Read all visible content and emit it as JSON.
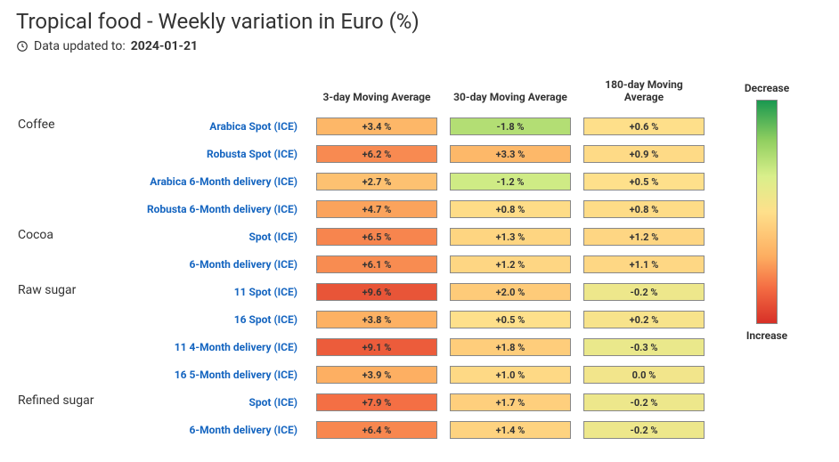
{
  "header": {
    "title": "Tropical food - Weekly variation in Euro (%)",
    "updated_prefix": "Data updated to:",
    "updated_date": "2024-01-21"
  },
  "columns": [
    "3-day Moving Average",
    "30-day Moving Average",
    "180-day Moving Average"
  ],
  "legend": {
    "top": "Decrease",
    "bottom": "Increase",
    "gradient_colors_top_to_bottom": [
      "#1a9850",
      "#91cf60",
      "#d9ef8b",
      "#fee08b",
      "#fdae61",
      "#f46d43",
      "#d73027"
    ]
  },
  "color_scale": {
    "domain_min": -5.0,
    "domain_max": 12.0,
    "stops": [
      {
        "v": -5.0,
        "c": "#1a9850"
      },
      {
        "v": -2.5,
        "c": "#91cf60"
      },
      {
        "v": -1.0,
        "c": "#d9ef8b"
      },
      {
        "v": 0.5,
        "c": "#fee08b"
      },
      {
        "v": 4.0,
        "c": "#fdae61"
      },
      {
        "v": 8.0,
        "c": "#f46d43"
      },
      {
        "v": 12.0,
        "c": "#d73027"
      }
    ]
  },
  "cell_border_color": "#888888",
  "cell_text_color": "#333333",
  "link_color": "#1565c0",
  "table": [
    {
      "group": "Coffee",
      "items": [
        {
          "label": "Arabica Spot (ICE)",
          "values": [
            3.4,
            -1.8,
            0.6
          ]
        },
        {
          "label": "Robusta Spot (ICE)",
          "values": [
            6.2,
            3.3,
            0.9
          ]
        },
        {
          "label": "Arabica 6-Month delivery (ICE)",
          "values": [
            2.7,
            -1.2,
            0.5
          ]
        },
        {
          "label": "Robusta 6-Month delivery (ICE)",
          "values": [
            4.7,
            0.8,
            0.8
          ]
        }
      ]
    },
    {
      "group": "Cocoa",
      "items": [
        {
          "label": "Spot (ICE)",
          "values": [
            6.5,
            1.3,
            1.2
          ]
        },
        {
          "label": "6-Month delivery (ICE)",
          "values": [
            6.1,
            1.2,
            1.1
          ]
        }
      ]
    },
    {
      "group": "Raw sugar",
      "items": [
        {
          "label": "11 Spot (ICE)",
          "values": [
            9.6,
            2.0,
            -0.2
          ]
        },
        {
          "label": "16 Spot (ICE)",
          "values": [
            3.8,
            0.5,
            0.2
          ]
        },
        {
          "label": "11 4-Month delivery (ICE)",
          "values": [
            9.1,
            1.8,
            -0.3
          ]
        },
        {
          "label": "16 5-Month delivery (ICE)",
          "values": [
            3.9,
            1.0,
            0.0
          ]
        }
      ]
    },
    {
      "group": "Refined sugar",
      "items": [
        {
          "label": "Spot (ICE)",
          "values": [
            7.9,
            1.7,
            -0.2
          ]
        },
        {
          "label": "6-Month delivery (ICE)",
          "values": [
            6.4,
            1.4,
            -0.2
          ]
        }
      ]
    }
  ]
}
